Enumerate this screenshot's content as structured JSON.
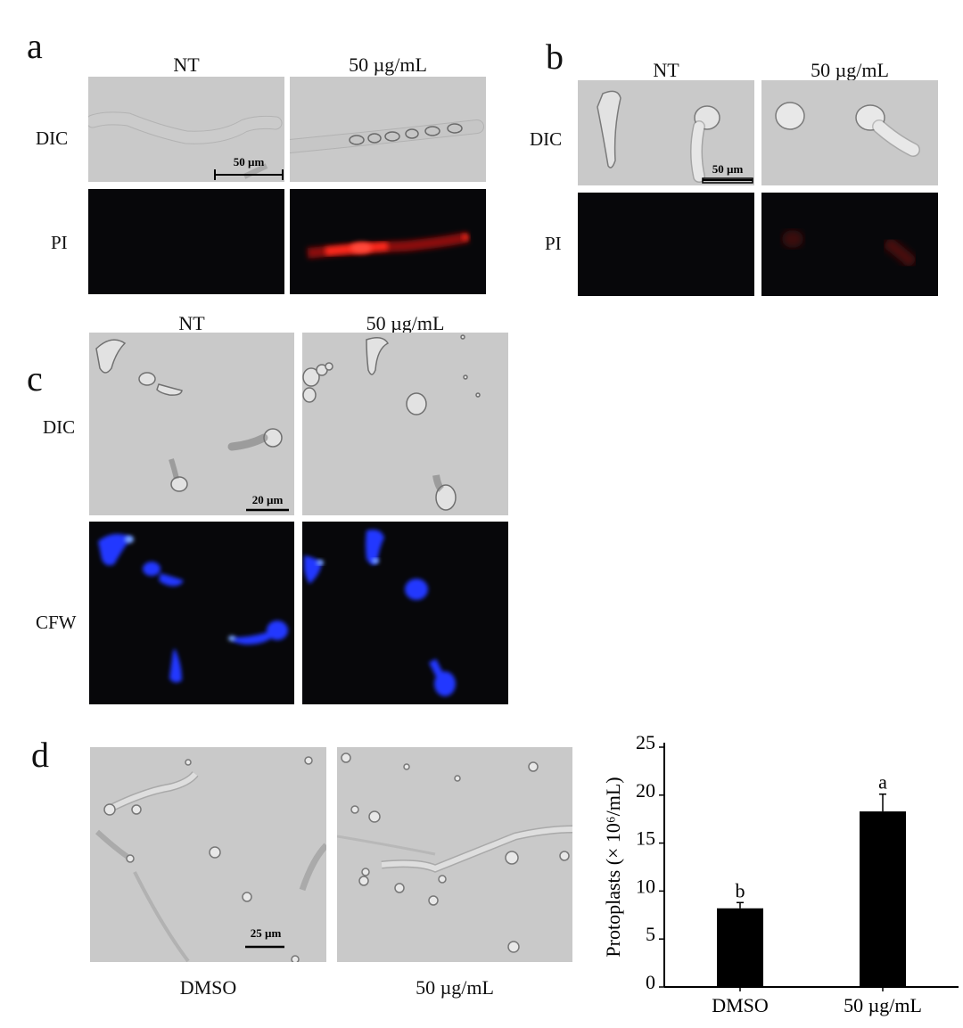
{
  "panels": {
    "a": {
      "letter": "a",
      "columns": [
        "NT",
        "50 µg/mL"
      ],
      "rows": [
        "DIC",
        "PI"
      ],
      "scale_bar": "50 µm"
    },
    "b": {
      "letter": "b",
      "columns": [
        "NT",
        "50 µg/mL"
      ],
      "rows": [
        "DIC",
        "PI"
      ],
      "scale_bar": "50 µm"
    },
    "c": {
      "letter": "c",
      "columns": [
        "NT",
        "50 µg/mL"
      ],
      "rows": [
        "DIC",
        "CFW"
      ],
      "scale_bar": "20 µm"
    },
    "d": {
      "letter": "d",
      "image_labels": [
        "DMSO",
        "50 µg/mL"
      ],
      "scale_bar": "25 µm"
    }
  },
  "colors": {
    "pi_signal": "#ff2a1a",
    "cfw_signal": "#2438ff",
    "dic_background": "#c9c9c9"
  },
  "chart_data": {
    "type": "bar",
    "categories": [
      "DMSO",
      "50 µg/mL"
    ],
    "values": [
      8.2,
      18.3
    ],
    "error": [
      0.6,
      1.8
    ],
    "significance_letters": [
      "b",
      "a"
    ],
    "title": "",
    "xlabel": "",
    "ylabel": "Protoplasts (× 10⁶/mL)",
    "ylim": [
      0,
      25
    ],
    "yticks": [
      0,
      5,
      10,
      15,
      20,
      25
    ],
    "grid": false
  }
}
